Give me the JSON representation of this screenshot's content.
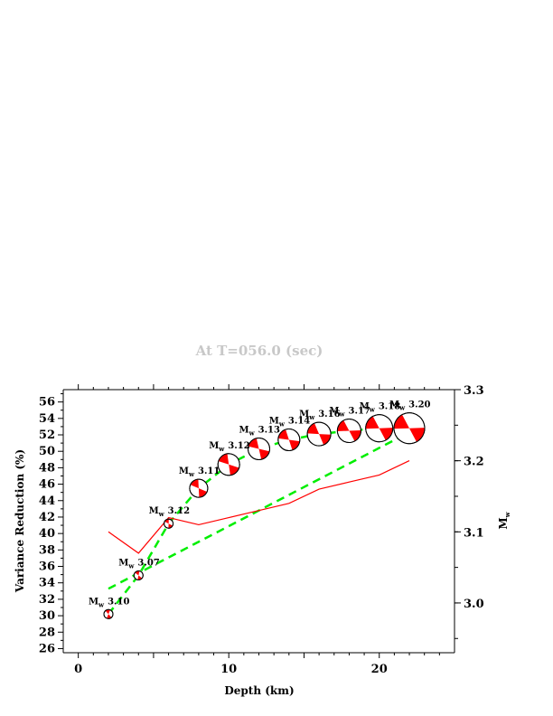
{
  "chart_data": {
    "type": "line",
    "title": "At T=056.0 (sec)",
    "xlabel": "Depth (km)",
    "ylabel": "Variance Reduction (%)",
    "y2label": "M",
    "y2label_sub": "w",
    "xlim": [
      -1,
      25
    ],
    "ylim": [
      25.5,
      57.5
    ],
    "y2lim": [
      2.93,
      3.3
    ],
    "xticks": [
      0,
      10,
      20
    ],
    "yticks": [
      26,
      28,
      30,
      32,
      34,
      36,
      38,
      40,
      42,
      44,
      46,
      48,
      50,
      52,
      54,
      56
    ],
    "y2ticks": [
      3.0,
      3.1,
      3.2,
      3.3
    ],
    "series": [
      {
        "role": "variance_reduction",
        "color": "#00ee00",
        "style": "dashed",
        "x": [
          2,
          4,
          6,
          8,
          10,
          12,
          14,
          16,
          18,
          20,
          22
        ],
        "y": [
          30.2,
          34.9,
          41.2,
          45.5,
          48.4,
          50.3,
          51.4,
          52.1,
          52.5,
          52.8,
          52.8
        ]
      },
      {
        "role": "mw_fit",
        "axis": "y2",
        "color": "#00ee00",
        "style": "dashed",
        "x": [
          2,
          22
        ],
        "y": [
          3.02,
          3.24
        ]
      },
      {
        "role": "mw",
        "axis": "y2",
        "color": "#ff0000",
        "style": "solid",
        "x": [
          2,
          4,
          6,
          8,
          10,
          12,
          14,
          16,
          18,
          20,
          22
        ],
        "y": [
          3.1,
          3.07,
          3.12,
          3.11,
          3.12,
          3.13,
          3.14,
          3.16,
          3.17,
          3.18,
          3.2
        ]
      }
    ],
    "beachballs": [
      {
        "x": 2,
        "y": 30.2,
        "label": "M",
        "sub": "w",
        "value": "3.10",
        "r": 5,
        "rot": 80
      },
      {
        "x": 4,
        "y": 34.9,
        "label": "M",
        "sub": "w",
        "value": "3.07",
        "r": 5,
        "rot": 70
      },
      {
        "x": 6,
        "y": 41.2,
        "label": "M",
        "sub": "w",
        "value": "3.12",
        "r": 5,
        "rot": 60
      },
      {
        "x": 8,
        "y": 45.5,
        "label": "M",
        "sub": "w",
        "value": "3.11",
        "r": 10,
        "rot": 55
      },
      {
        "x": 10,
        "y": 48.4,
        "label": "M",
        "sub": "w",
        "value": "3.12",
        "r": 12,
        "rot": 50
      },
      {
        "x": 12,
        "y": 50.3,
        "label": "M",
        "sub": "w",
        "value": "3.13",
        "r": 12,
        "rot": 45
      },
      {
        "x": 14,
        "y": 51.4,
        "label": "M",
        "sub": "w",
        "value": "3.14",
        "r": 12,
        "rot": 40
      },
      {
        "x": 16,
        "y": 52.1,
        "label": "M",
        "sub": "w",
        "value": "3.16",
        "r": 13,
        "rot": 35
      },
      {
        "x": 18,
        "y": 52.5,
        "label": "M",
        "sub": "w",
        "value": "3.17",
        "r": 13,
        "rot": 30
      },
      {
        "x": 20,
        "y": 52.8,
        "label": "M",
        "sub": "w",
        "value": "3.18",
        "r": 15,
        "rot": 30
      },
      {
        "x": 22,
        "y": 52.8,
        "label": "M",
        "sub": "w",
        "value": "3.20",
        "r": 17,
        "rot": 30
      }
    ],
    "colors": {
      "compressional": "#ff0000",
      "dilatational": "#ffffff",
      "outline": "#000000"
    },
    "grid": false,
    "legend": "none"
  }
}
